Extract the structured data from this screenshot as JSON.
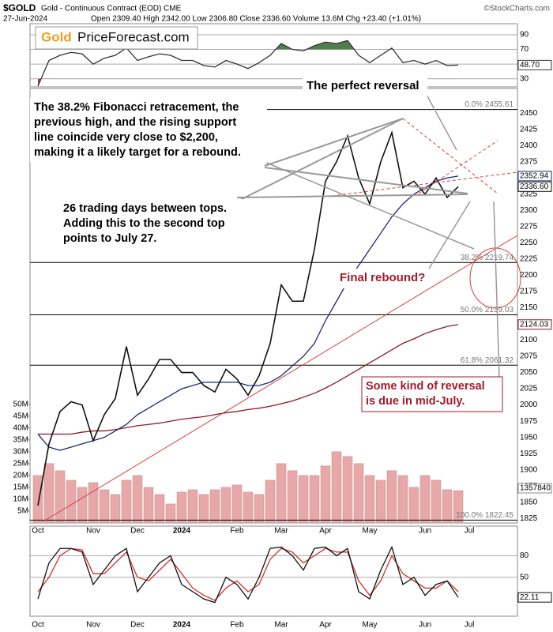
{
  "header": {
    "symbol": "$GOLD",
    "title": "Gold - Continuous Contract (EOD) CME",
    "date": "27-Jun-2024",
    "stats": "Open 2309.40 High 2342.00 Low 2306.80 Close 2336.60 Volume 13.6M Chg +23.40 (+1.01%)",
    "credit": "©StockCharts.com"
  },
  "logo": {
    "part1": "Gold",
    "part2": "PriceForecast.com"
  },
  "annotations": [
    {
      "lines": [
        "The perfect reversal"
      ]
    },
    {
      "lines": [
        "The 38.2% Fibonacci retracement, the",
        "previous high, and the rising support",
        "line coincide very close to $2,200,",
        "making it a likely target for a rebound."
      ]
    },
    {
      "lines": [
        "26 trading days between tops.",
        "Adding this to the second top",
        "points to July 27."
      ]
    },
    {
      "lines": [
        "Final rebound?"
      ]
    },
    {
      "lines": [
        "Some kind of reversal",
        "is due in mid-July."
      ]
    },
    {
      "lines": [
        "1357840"
      ]
    }
  ],
  "chart_data": [
    {
      "type": "line",
      "ylim": [
        19,
        105
      ],
      "yticks": [
        30,
        50,
        70,
        90
      ],
      "grid": true,
      "fill_levels": [
        70,
        30
      ],
      "fill_above": "#4f7f4f",
      "fill_below": "#8a4a4a",
      "series": [
        {
          "color": "#333333",
          "values": [
            20,
            55,
            62,
            66,
            64,
            50,
            58,
            62,
            72,
            55,
            60,
            64,
            62,
            55,
            55,
            48,
            46,
            55,
            50,
            44,
            52,
            62,
            78,
            70,
            68,
            75,
            80,
            78,
            82,
            62,
            52,
            62,
            72,
            52,
            55,
            50,
            55,
            48,
            48.7,
            null,
            null,
            null,
            null,
            null
          ],
          "value_labels": [
            null,
            null,
            null,
            null,
            null,
            null,
            null,
            null,
            null,
            null,
            null,
            null,
            null,
            null,
            null,
            null,
            null,
            null,
            null,
            null,
            null,
            null,
            null,
            null,
            null,
            null,
            null,
            null,
            null,
            null,
            null,
            null,
            null,
            null,
            null,
            null,
            null,
            null,
            "48.70",
            null,
            null,
            null,
            null,
            null
          ]
        }
      ]
    },
    {
      "type": "line",
      "categories": [
        "Oct",
        null,
        null,
        null,
        null,
        "Nov",
        null,
        null,
        null,
        "Dec",
        null,
        null,
        null,
        "2024",
        null,
        null,
        null,
        null,
        "Feb",
        null,
        null,
        null,
        "Mar",
        null,
        null,
        null,
        "Apr",
        null,
        null,
        null,
        "May",
        null,
        null,
        null,
        null,
        "Jun",
        null,
        null,
        null,
        "Jul",
        null,
        null,
        null,
        null
      ],
      "ylim": [
        1818,
        2488
      ],
      "yticks": [
        1825,
        1850,
        1875,
        1900,
        1925,
        1950,
        1975,
        2000,
        2025,
        2050,
        2075,
        2100,
        2125,
        2150,
        2175,
        2200,
        2225,
        2250,
        2275,
        2300,
        2325,
        2350,
        2375,
        2400,
        2425,
        2450
      ],
      "y2lim": [
        0,
        183
      ],
      "y2ticks": [
        {
          "value": 5,
          "label": "5M"
        },
        {
          "value": 10,
          "label": "10M"
        },
        {
          "value": 15,
          "label": "15M"
        },
        {
          "value": 20,
          "label": "20M"
        },
        {
          "value": 25,
          "label": "25M"
        },
        {
          "value": 30,
          "label": "30M"
        },
        {
          "value": 35,
          "label": "35M"
        },
        {
          "value": 40,
          "label": "40M"
        },
        {
          "value": 45,
          "label": "45M"
        },
        {
          "value": 50,
          "label": "50M"
        }
      ],
      "fib_levels": [
        {
          "value": 2455.61,
          "label": "0.0% 2455.61"
        },
        {
          "value": 2219.74,
          "label": "38.2% 2219.74"
        },
        {
          "value": 2139.03,
          "label": "50.0% 2139.03"
        },
        {
          "value": 2061.32,
          "label": "61.8% 2061.32"
        },
        {
          "value": 1822.45,
          "label": "100.0% 1822.45"
        }
      ],
      "series": [
        {
          "type": "bar",
          "axis": "y2",
          "color": "#e8a8a8",
          "values": [
            20,
            25,
            22,
            18,
            15,
            17,
            14,
            12,
            18,
            20,
            15,
            12,
            8,
            13,
            14,
            12,
            14,
            15,
            16,
            13,
            12,
            18,
            25,
            22,
            20,
            20,
            24,
            30,
            28,
            25,
            20,
            18,
            22,
            20,
            15,
            20,
            18,
            14,
            13.6,
            null,
            null,
            null,
            null,
            null
          ]
        },
        {
          "color": "#8b1a2b",
          "values": [
            1955,
            1955,
            1955,
            1955,
            1958,
            1960,
            1960,
            1962,
            1965,
            1968,
            1970,
            1972,
            1975,
            1978,
            1980,
            1982,
            1985,
            1988,
            1990,
            1993,
            1995,
            1998,
            2002,
            2006,
            2012,
            2018,
            2026,
            2035,
            2045,
            2055,
            2065,
            2075,
            2085,
            2095,
            2102,
            2110,
            2116,
            2121,
            2124.03,
            null,
            null,
            null,
            null,
            null
          ],
          "value_labels": [
            null,
            null,
            null,
            null,
            null,
            null,
            null,
            null,
            null,
            null,
            null,
            null,
            null,
            null,
            null,
            null,
            null,
            null,
            null,
            null,
            null,
            null,
            null,
            null,
            null,
            null,
            null,
            null,
            null,
            null,
            null,
            null,
            null,
            null,
            null,
            null,
            null,
            null,
            "2124.03",
            null,
            null,
            null,
            null,
            null
          ]
        },
        {
          "color": "#1c2a6e",
          "values": [
            1955,
            1935,
            1930,
            1935,
            1940,
            1945,
            1950,
            1960,
            1970,
            1985,
            1995,
            2005,
            2015,
            2025,
            2030,
            2035,
            2035,
            2035,
            2035,
            2030,
            2030,
            2035,
            2045,
            2060,
            2075,
            2095,
            2130,
            2160,
            2190,
            2215,
            2240,
            2265,
            2290,
            2310,
            2325,
            2335,
            2345,
            2350,
            2352.94,
            null,
            null,
            null,
            null,
            null
          ],
          "value_labels": [
            null,
            null,
            null,
            null,
            null,
            null,
            null,
            null,
            null,
            null,
            null,
            null,
            null,
            null,
            null,
            null,
            null,
            null,
            null,
            null,
            null,
            null,
            null,
            null,
            null,
            null,
            null,
            null,
            null,
            null,
            null,
            null,
            null,
            null,
            null,
            null,
            null,
            null,
            "2352.94",
            null,
            null,
            null,
            null,
            null
          ]
        },
        {
          "color": "#111111",
          "values": [
            1845,
            1940,
            1990,
            2005,
            2000,
            1945,
            1985,
            2010,
            2090,
            2015,
            2040,
            2070,
            2070,
            2050,
            2050,
            2030,
            2020,
            2055,
            2040,
            2015,
            2045,
            2095,
            2185,
            2160,
            2160,
            2240,
            2345,
            2375,
            2415,
            2350,
            2310,
            2375,
            2420,
            2335,
            2345,
            2325,
            2350,
            2320,
            2336.6,
            null,
            null,
            null,
            null,
            null
          ],
          "value_labels": [
            null,
            null,
            null,
            null,
            null,
            null,
            null,
            null,
            null,
            null,
            null,
            null,
            null,
            null,
            null,
            null,
            null,
            null,
            null,
            null,
            null,
            null,
            null,
            null,
            null,
            null,
            null,
            null,
            null,
            null,
            null,
            null,
            null,
            null,
            null,
            null,
            null,
            null,
            "2336.60",
            null,
            null,
            null,
            null,
            null
          ]
        }
      ]
    },
    {
      "type": "line",
      "ylim": [
        -4,
        121
      ],
      "yticks": [
        50,
        80
      ],
      "grid": true,
      "series": [
        {
          "color": "#d03030",
          "values": [
            30,
            50,
            80,
            90,
            88,
            55,
            55,
            70,
            85,
            50,
            45,
            60,
            75,
            55,
            35,
            25,
            18,
            35,
            45,
            30,
            40,
            75,
            90,
            85,
            70,
            80,
            90,
            85,
            85,
            45,
            25,
            45,
            80,
            55,
            45,
            35,
            35,
            45,
            30,
            null,
            null,
            null,
            null,
            null
          ]
        },
        {
          "color": "#111111",
          "values": [
            20,
            70,
            90,
            90,
            85,
            40,
            60,
            80,
            90,
            30,
            50,
            70,
            80,
            40,
            30,
            20,
            15,
            50,
            40,
            20,
            50,
            90,
            92,
            80,
            60,
            90,
            92,
            80,
            90,
            30,
            20,
            60,
            92,
            40,
            50,
            25,
            40,
            45,
            22.11,
            null,
            null,
            null,
            null,
            null
          ],
          "value_labels": [
            null,
            null,
            null,
            null,
            null,
            null,
            null,
            null,
            null,
            null,
            null,
            null,
            null,
            null,
            null,
            null,
            null,
            null,
            null,
            null,
            null,
            null,
            null,
            null,
            null,
            null,
            null,
            null,
            null,
            null,
            null,
            null,
            null,
            null,
            null,
            null,
            null,
            null,
            "22.11",
            null,
            null,
            null,
            null,
            null
          ]
        }
      ]
    }
  ]
}
